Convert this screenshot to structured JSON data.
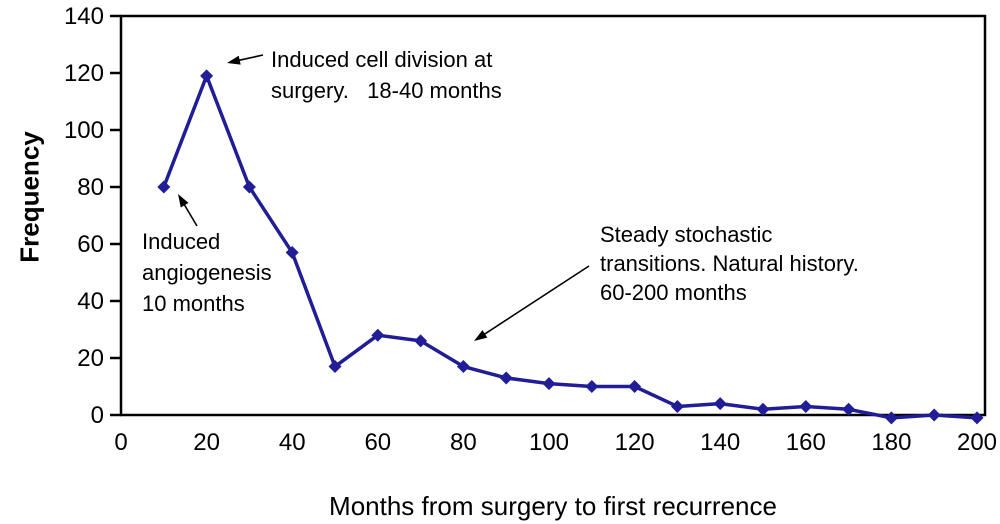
{
  "page": {
    "background_color": "#ffffff",
    "text_color": "#000000"
  },
  "chart_data": {
    "type": "line",
    "x": [
      10,
      20,
      30,
      40,
      50,
      60,
      70,
      80,
      90,
      100,
      110,
      120,
      130,
      140,
      150,
      160,
      170,
      180,
      190,
      200
    ],
    "y": [
      80,
      119,
      80,
      57,
      17,
      28,
      26,
      17,
      13,
      11,
      10,
      10,
      3,
      4,
      2,
      3,
      2,
      -1,
      0,
      -1
    ],
    "title": "",
    "xlabel": "Months from surgery to first recurrence",
    "ylabel": "Frequency",
    "xlim": [
      0,
      200
    ],
    "ylim": [
      0,
      140
    ],
    "xticks": [
      "0",
      "20",
      "40",
      "60",
      "80",
      "100",
      "120",
      "140",
      "160",
      "180",
      "200"
    ],
    "yticks": [
      "0",
      "20",
      "40",
      "60",
      "80",
      "100",
      "120",
      "140"
    ],
    "xtick_values": [
      0,
      20,
      40,
      60,
      80,
      100,
      120,
      140,
      160,
      180,
      200
    ],
    "ytick_values": [
      0,
      20,
      40,
      60,
      80,
      100,
      120,
      140
    ],
    "grid": false,
    "legend": "none",
    "line_color": "#201d96",
    "marker": "diamond",
    "axis_color": "#000000",
    "annotations": [
      {
        "id": "cell-division",
        "lines": [
          "Induced cell division at",
          "surgery.   18-40 months"
        ]
      },
      {
        "id": "angiogenesis",
        "lines": [
          "Induced",
          "angiogenesis",
          "10 months"
        ]
      },
      {
        "id": "natural-history",
        "lines": [
          "Steady stochastic",
          "transitions. Natural history.",
          "60-200 months"
        ]
      }
    ]
  }
}
